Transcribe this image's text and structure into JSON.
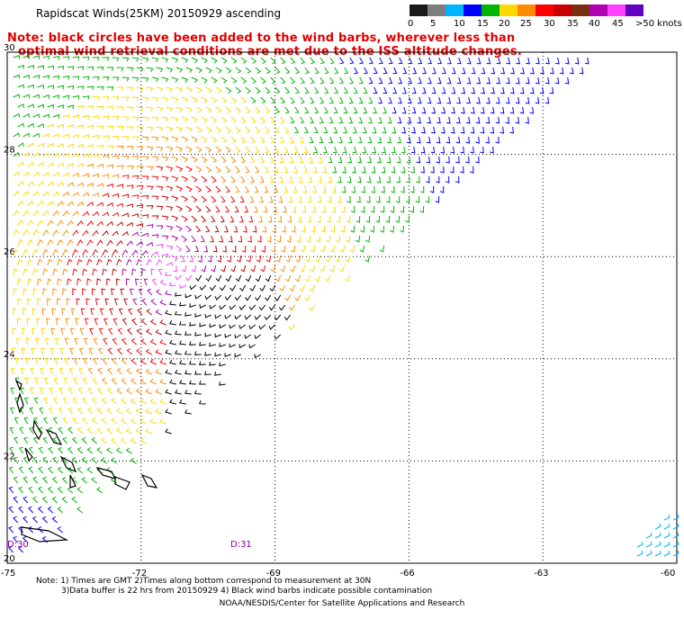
{
  "title": "Rapidscat Winds(25KM) 20150929 ascending",
  "note": {
    "line1": "Note: black circles have been added to the wind barbs, wherever less than",
    "line2": "optimal wind retrieval conditions are met due to the ISS altitude changes."
  },
  "colorbar": {
    "colors": [
      "#1a1a1a",
      "#7d7d7d",
      "#00b4ff",
      "#0000ff",
      "#00b400",
      "#ffd800",
      "#ff8c00",
      "#ff0000",
      "#c80000",
      "#7a3010",
      "#b000b0",
      "#ff40ff",
      "#6000c0"
    ],
    "labels": [
      "0",
      "5",
      "10",
      "15",
      "20",
      "25",
      "30",
      "35",
      "40",
      "45",
      ">50 knots"
    ]
  },
  "axes": {
    "lat_labels": [
      "30",
      "28",
      "26",
      "24",
      "22",
      "20"
    ],
    "lon_labels": [
      "-75",
      "-72",
      "-69",
      "-66",
      "-63",
      "-60"
    ]
  },
  "day_labels": [
    "D:30",
    "D:31"
  ],
  "footer": {
    "line1": "Note: 1) Times are GMT 2)Times along bottom correspond to measurement at 30N",
    "line2": "3)Data buffer is 22 hrs from 20150929 4) Black wind barbs indicate possible contamination",
    "credit": "NOAA/NESDIS/Center for Satellite Applications and Research"
  }
}
